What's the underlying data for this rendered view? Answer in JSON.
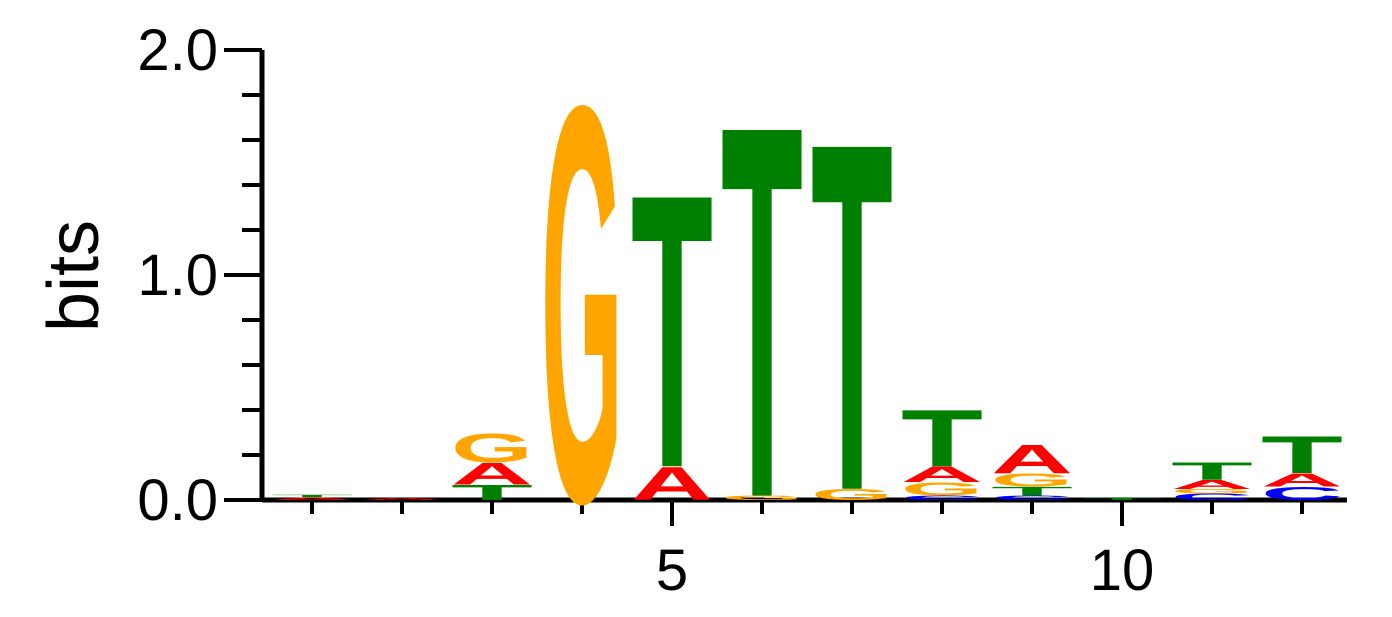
{
  "chart_data": {
    "type": "sequence-logo",
    "ylabel": "bits",
    "ylim": [
      0,
      2
    ],
    "y_ticks": [
      "0.0",
      "1.0",
      "2.0"
    ],
    "x_range": [
      1,
      12
    ],
    "x_tick_labels": [
      {
        "position": 5,
        "label": "5"
      },
      {
        "position": 10,
        "label": "10"
      }
    ],
    "colors": {
      "A": "#ff0000",
      "C": "#0000ff",
      "G": "#ffa500",
      "T": "#008000"
    },
    "positions": [
      {
        "pos": 1,
        "letters": [
          {
            "base": "A",
            "bits": 0.012
          },
          {
            "base": "T",
            "bits": 0.012
          }
        ]
      },
      {
        "pos": 2,
        "letters": [
          {
            "base": "A",
            "bits": 0.008
          }
        ]
      },
      {
        "pos": 3,
        "letters": [
          {
            "base": "T",
            "bits": 0.07
          },
          {
            "base": "A",
            "bits": 0.1
          },
          {
            "base": "G",
            "bits": 0.13
          }
        ]
      },
      {
        "pos": 4,
        "letters": [
          {
            "base": "G",
            "bits": 1.81
          }
        ]
      },
      {
        "pos": 5,
        "letters": [
          {
            "base": "A",
            "bits": 0.15
          },
          {
            "base": "T",
            "bits": 1.25
          }
        ]
      },
      {
        "pos": 6,
        "letters": [
          {
            "base": "G",
            "bits": 0.02
          },
          {
            "base": "T",
            "bits": 1.7
          }
        ]
      },
      {
        "pos": 7,
        "letters": [
          {
            "base": "G",
            "bits": 0.05
          },
          {
            "base": "T",
            "bits": 1.59
          }
        ]
      },
      {
        "pos": 8,
        "letters": [
          {
            "base": "C",
            "bits": 0.02
          },
          {
            "base": "G",
            "bits": 0.06
          },
          {
            "base": "A",
            "bits": 0.07
          },
          {
            "base": "T",
            "bits": 0.26
          }
        ]
      },
      {
        "pos": 9,
        "letters": [
          {
            "base": "C",
            "bits": 0.02
          },
          {
            "base": "T",
            "bits": 0.04
          },
          {
            "base": "G",
            "bits": 0.06
          },
          {
            "base": "A",
            "bits": 0.13
          }
        ]
      },
      {
        "pos": 10,
        "letters": [
          {
            "base": "T",
            "bits": 0.01
          }
        ]
      },
      {
        "pos": 11,
        "letters": [
          {
            "base": "C",
            "bits": 0.03
          },
          {
            "base": "G",
            "bits": 0.02
          },
          {
            "base": "A",
            "bits": 0.04
          },
          {
            "base": "T",
            "bits": 0.08
          }
        ]
      },
      {
        "pos": 12,
        "letters": [
          {
            "base": "C",
            "bits": 0.06
          },
          {
            "base": "A",
            "bits": 0.06
          },
          {
            "base": "T",
            "bits": 0.17
          }
        ]
      }
    ]
  }
}
